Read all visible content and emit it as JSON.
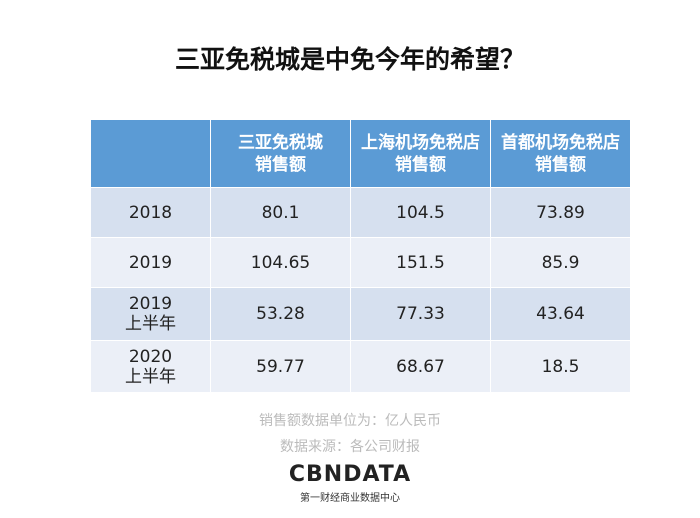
{
  "title": "三亚免税城是中免今年的希望？",
  "table": {
    "header": [
      [
        "三亚免税城",
        "销售额"
      ],
      [
        "上海机场免税店",
        "销售额"
      ],
      [
        "首都机场免税店",
        "销售额"
      ]
    ],
    "rows": [
      [
        [
          "2018"
        ],
        "80.1",
        "104.5",
        "73.89"
      ],
      [
        [
          "2019"
        ],
        "104.65",
        "151.5",
        "85.9"
      ],
      [
        [
          "2019",
          "上半年"
        ],
        "53.28",
        "77.33",
        "43.64"
      ],
      [
        [
          "2020",
          "上半年"
        ],
        "59.77",
        "68.67",
        "18.5"
      ]
    ]
  },
  "notes": [
    "销售额数据单位为：亿人民币",
    "数据来源：各公司财报"
  ],
  "logo": {
    "name": "CBNDATA",
    "tagline": "第一财经商业数据中心"
  }
}
